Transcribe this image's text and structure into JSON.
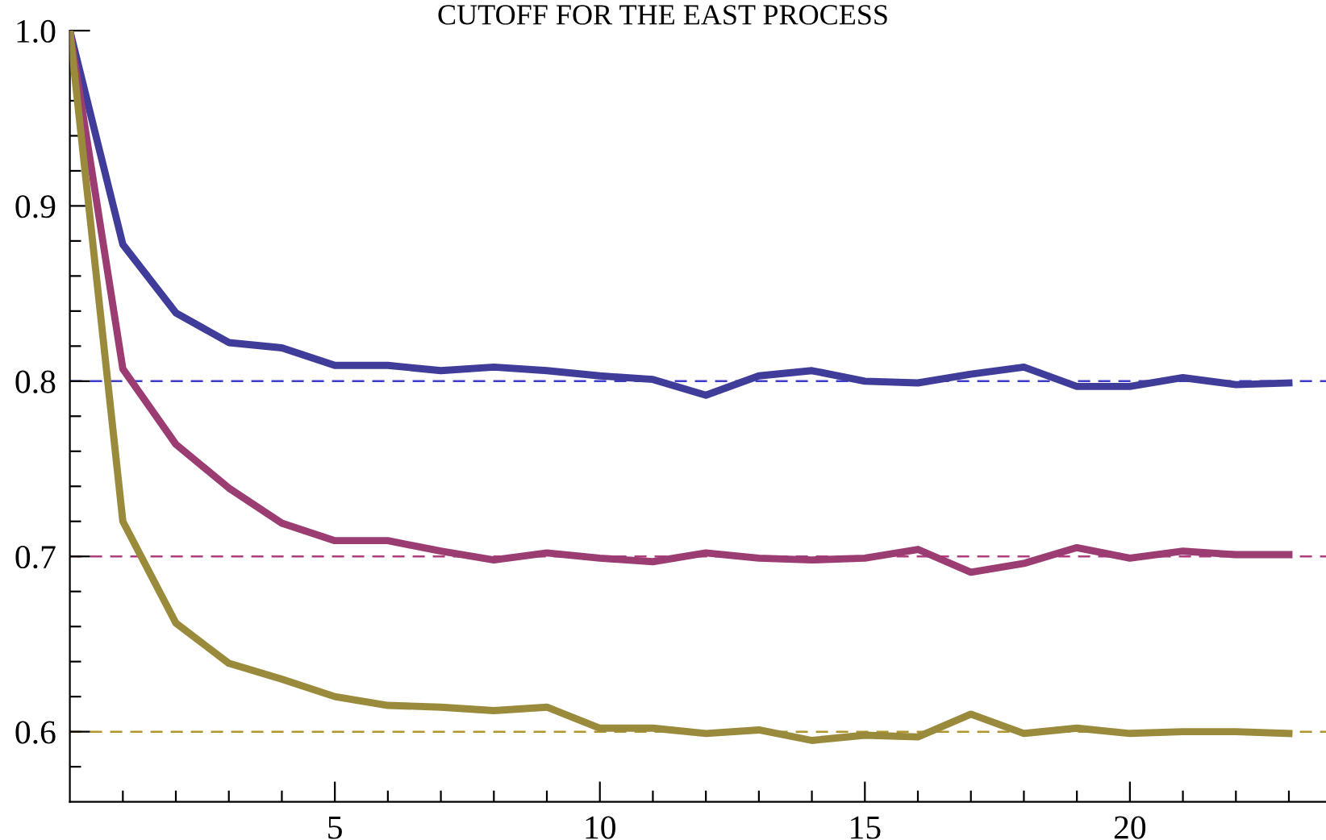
{
  "chart_data": {
    "type": "line",
    "title": "CUTOFF FOR THE EAST PROCESS",
    "x": [
      0,
      1,
      2,
      3,
      4,
      5,
      6,
      7,
      8,
      9,
      10,
      11,
      12,
      13,
      14,
      15,
      16,
      17,
      18,
      19,
      20,
      21,
      22,
      23
    ],
    "series": [
      {
        "color": "#3f3d99",
        "values": [
          1.0,
          0.878,
          0.839,
          0.822,
          0.819,
          0.809,
          0.809,
          0.806,
          0.808,
          0.806,
          0.803,
          0.801,
          0.792,
          0.803,
          0.806,
          0.8,
          0.799,
          0.804,
          0.808,
          0.797,
          0.797,
          0.802,
          0.798,
          0.799
        ]
      },
      {
        "color": "#9b3d72",
        "values": [
          1.0,
          0.807,
          0.764,
          0.739,
          0.719,
          0.709,
          0.709,
          0.703,
          0.698,
          0.702,
          0.699,
          0.697,
          0.702,
          0.699,
          0.698,
          0.699,
          0.704,
          0.691,
          0.696,
          0.705,
          0.699,
          0.703,
          0.701,
          0.701
        ]
      },
      {
        "color": "#9a8b3c",
        "values": [
          1.0,
          0.72,
          0.662,
          0.639,
          0.63,
          0.62,
          0.615,
          0.614,
          0.612,
          0.614,
          0.602,
          0.602,
          0.599,
          0.601,
          0.595,
          0.598,
          0.597,
          0.61,
          0.599,
          0.602,
          0.599,
          0.6,
          0.6,
          0.599
        ]
      }
    ],
    "xlim": [
      0,
      23.7
    ],
    "ylim": [
      0.56,
      1.0
    ],
    "xticks": [
      {
        "value": 1,
        "label": null
      },
      {
        "value": 2,
        "label": null
      },
      {
        "value": 3,
        "label": null
      },
      {
        "value": 4,
        "label": null
      },
      5,
      {
        "value": 6,
        "label": null
      },
      {
        "value": 7,
        "label": null
      },
      {
        "value": 8,
        "label": null
      },
      {
        "value": 9,
        "label": null
      },
      10,
      {
        "value": 11,
        "label": null
      },
      {
        "value": 12,
        "label": null
      },
      {
        "value": 13,
        "label": null
      },
      {
        "value": 14,
        "label": null
      },
      15,
      {
        "value": 16,
        "label": null
      },
      {
        "value": 17,
        "label": null
      },
      {
        "value": 18,
        "label": null
      },
      {
        "value": 19,
        "label": null
      },
      20,
      {
        "value": 21,
        "label": null
      },
      {
        "value": 22,
        "label": null
      },
      {
        "value": 23,
        "label": null
      }
    ],
    "yticks": [
      {
        "value": 0.58,
        "label": null
      },
      {
        "value": 0.6,
        "label": "0.6"
      },
      {
        "value": 0.62,
        "label": null
      },
      {
        "value": 0.64,
        "label": null
      },
      {
        "value": 0.66,
        "label": null
      },
      {
        "value": 0.68,
        "label": null
      },
      {
        "value": 0.7,
        "label": "0.7"
      },
      {
        "value": 0.72,
        "label": null
      },
      {
        "value": 0.74,
        "label": null
      },
      {
        "value": 0.76,
        "label": null
      },
      {
        "value": 0.78,
        "label": null
      },
      {
        "value": 0.8,
        "label": "0.8"
      },
      {
        "value": 0.82,
        "label": null
      },
      {
        "value": 0.84,
        "label": null
      },
      {
        "value": 0.86,
        "label": null
      },
      {
        "value": 0.88,
        "label": null
      },
      {
        "value": 0.9,
        "label": "0.9"
      },
      {
        "value": 0.92,
        "label": null
      },
      {
        "value": 0.94,
        "label": null
      },
      {
        "value": 0.96,
        "label": null
      },
      {
        "value": 0.98,
        "label": null
      },
      {
        "value": 1.0,
        "label": "1.0"
      }
    ],
    "ref_lines": [
      {
        "axis": "y",
        "value": 0.8,
        "color": "#3f3dcc",
        "line_style": "dashed"
      },
      {
        "axis": "y",
        "value": 0.7,
        "color": "#b03d80",
        "line_style": "dashed"
      },
      {
        "axis": "y",
        "value": 0.6,
        "color": "#b0962c",
        "line_style": "dashed"
      }
    ],
    "grid": false,
    "legend": false,
    "marker": "none",
    "line_style": "solid"
  }
}
